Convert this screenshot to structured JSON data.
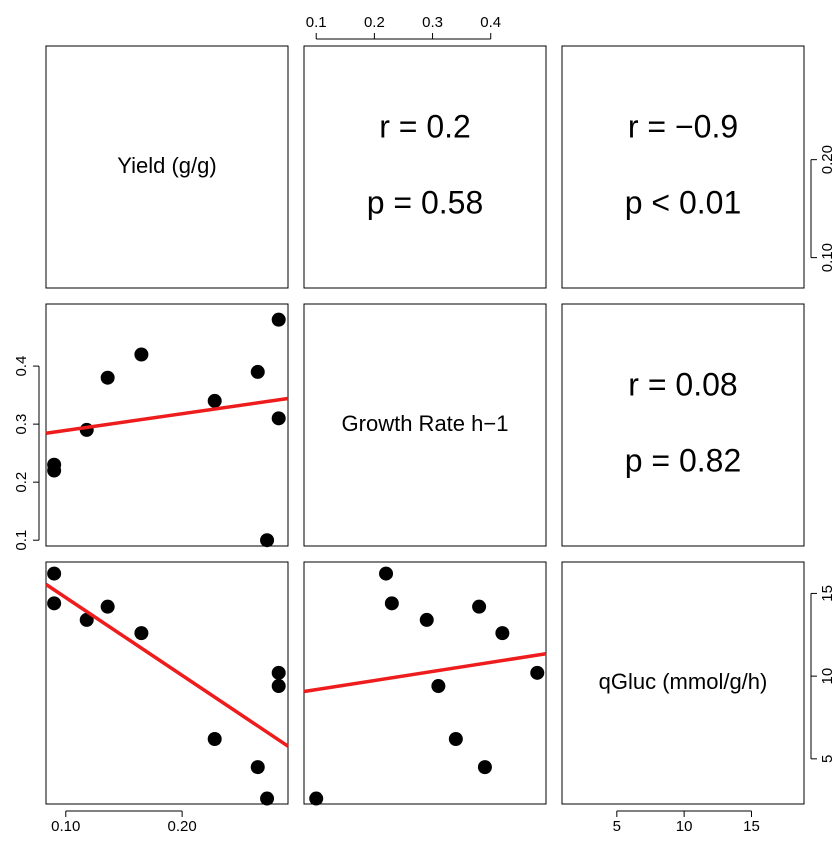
{
  "chart_data": {
    "type": "pairs",
    "variables": [
      {
        "name": "Yield (g/g)",
        "values": [
          0.09,
          0.09,
          0.118,
          0.136,
          0.165,
          0.228,
          0.265,
          0.273,
          0.283,
          0.283
        ],
        "xlim": [
          0.083,
          0.291
        ],
        "xticks": [
          {
            "value": 0.1,
            "label": "0.10"
          },
          {
            "value": 0.2,
            "label": "0.20"
          }
        ],
        "ylim": [
          0.069,
          0.316
        ],
        "yticks": [
          {
            "value": 0.1,
            "label": "0.10"
          },
          {
            "value": 0.2,
            "label": "0.20"
          }
        ]
      },
      {
        "name": "Growth Rate h−1",
        "values": [
          0.22,
          0.23,
          0.29,
          0.38,
          0.42,
          0.34,
          0.39,
          0.1,
          0.31,
          0.48
        ],
        "xlim": [
          0.079,
          0.495
        ],
        "xticks": [
          0.1,
          0.2,
          0.3,
          0.4
        ],
        "ylim": [
          0.09,
          0.507
        ],
        "yticks": [
          0.1,
          0.2,
          0.3,
          0.4
        ]
      },
      {
        "name": "qGluc (mmol/g/h)",
        "values": [
          16.2,
          14.4,
          13.4,
          14.2,
          12.6,
          6.2,
          4.5,
          2.6,
          9.4,
          10.2
        ],
        "xlim": [
          0.93,
          18.9
        ],
        "xticks": [
          5,
          10,
          15
        ],
        "ylim": [
          2.27,
          16.9
        ],
        "yticks": [
          5,
          10,
          15
        ]
      }
    ],
    "correlations": [
      {
        "r": "r = 0.2",
        "p": "p = 0.58"
      },
      {
        "r": "r = −0.9",
        "p": "p < 0.01"
      },
      {
        "r": "r = 0.08",
        "p": "p = 0.82"
      }
    ],
    "point_color": "#000000",
    "fit_color": "#ee1c1c"
  }
}
